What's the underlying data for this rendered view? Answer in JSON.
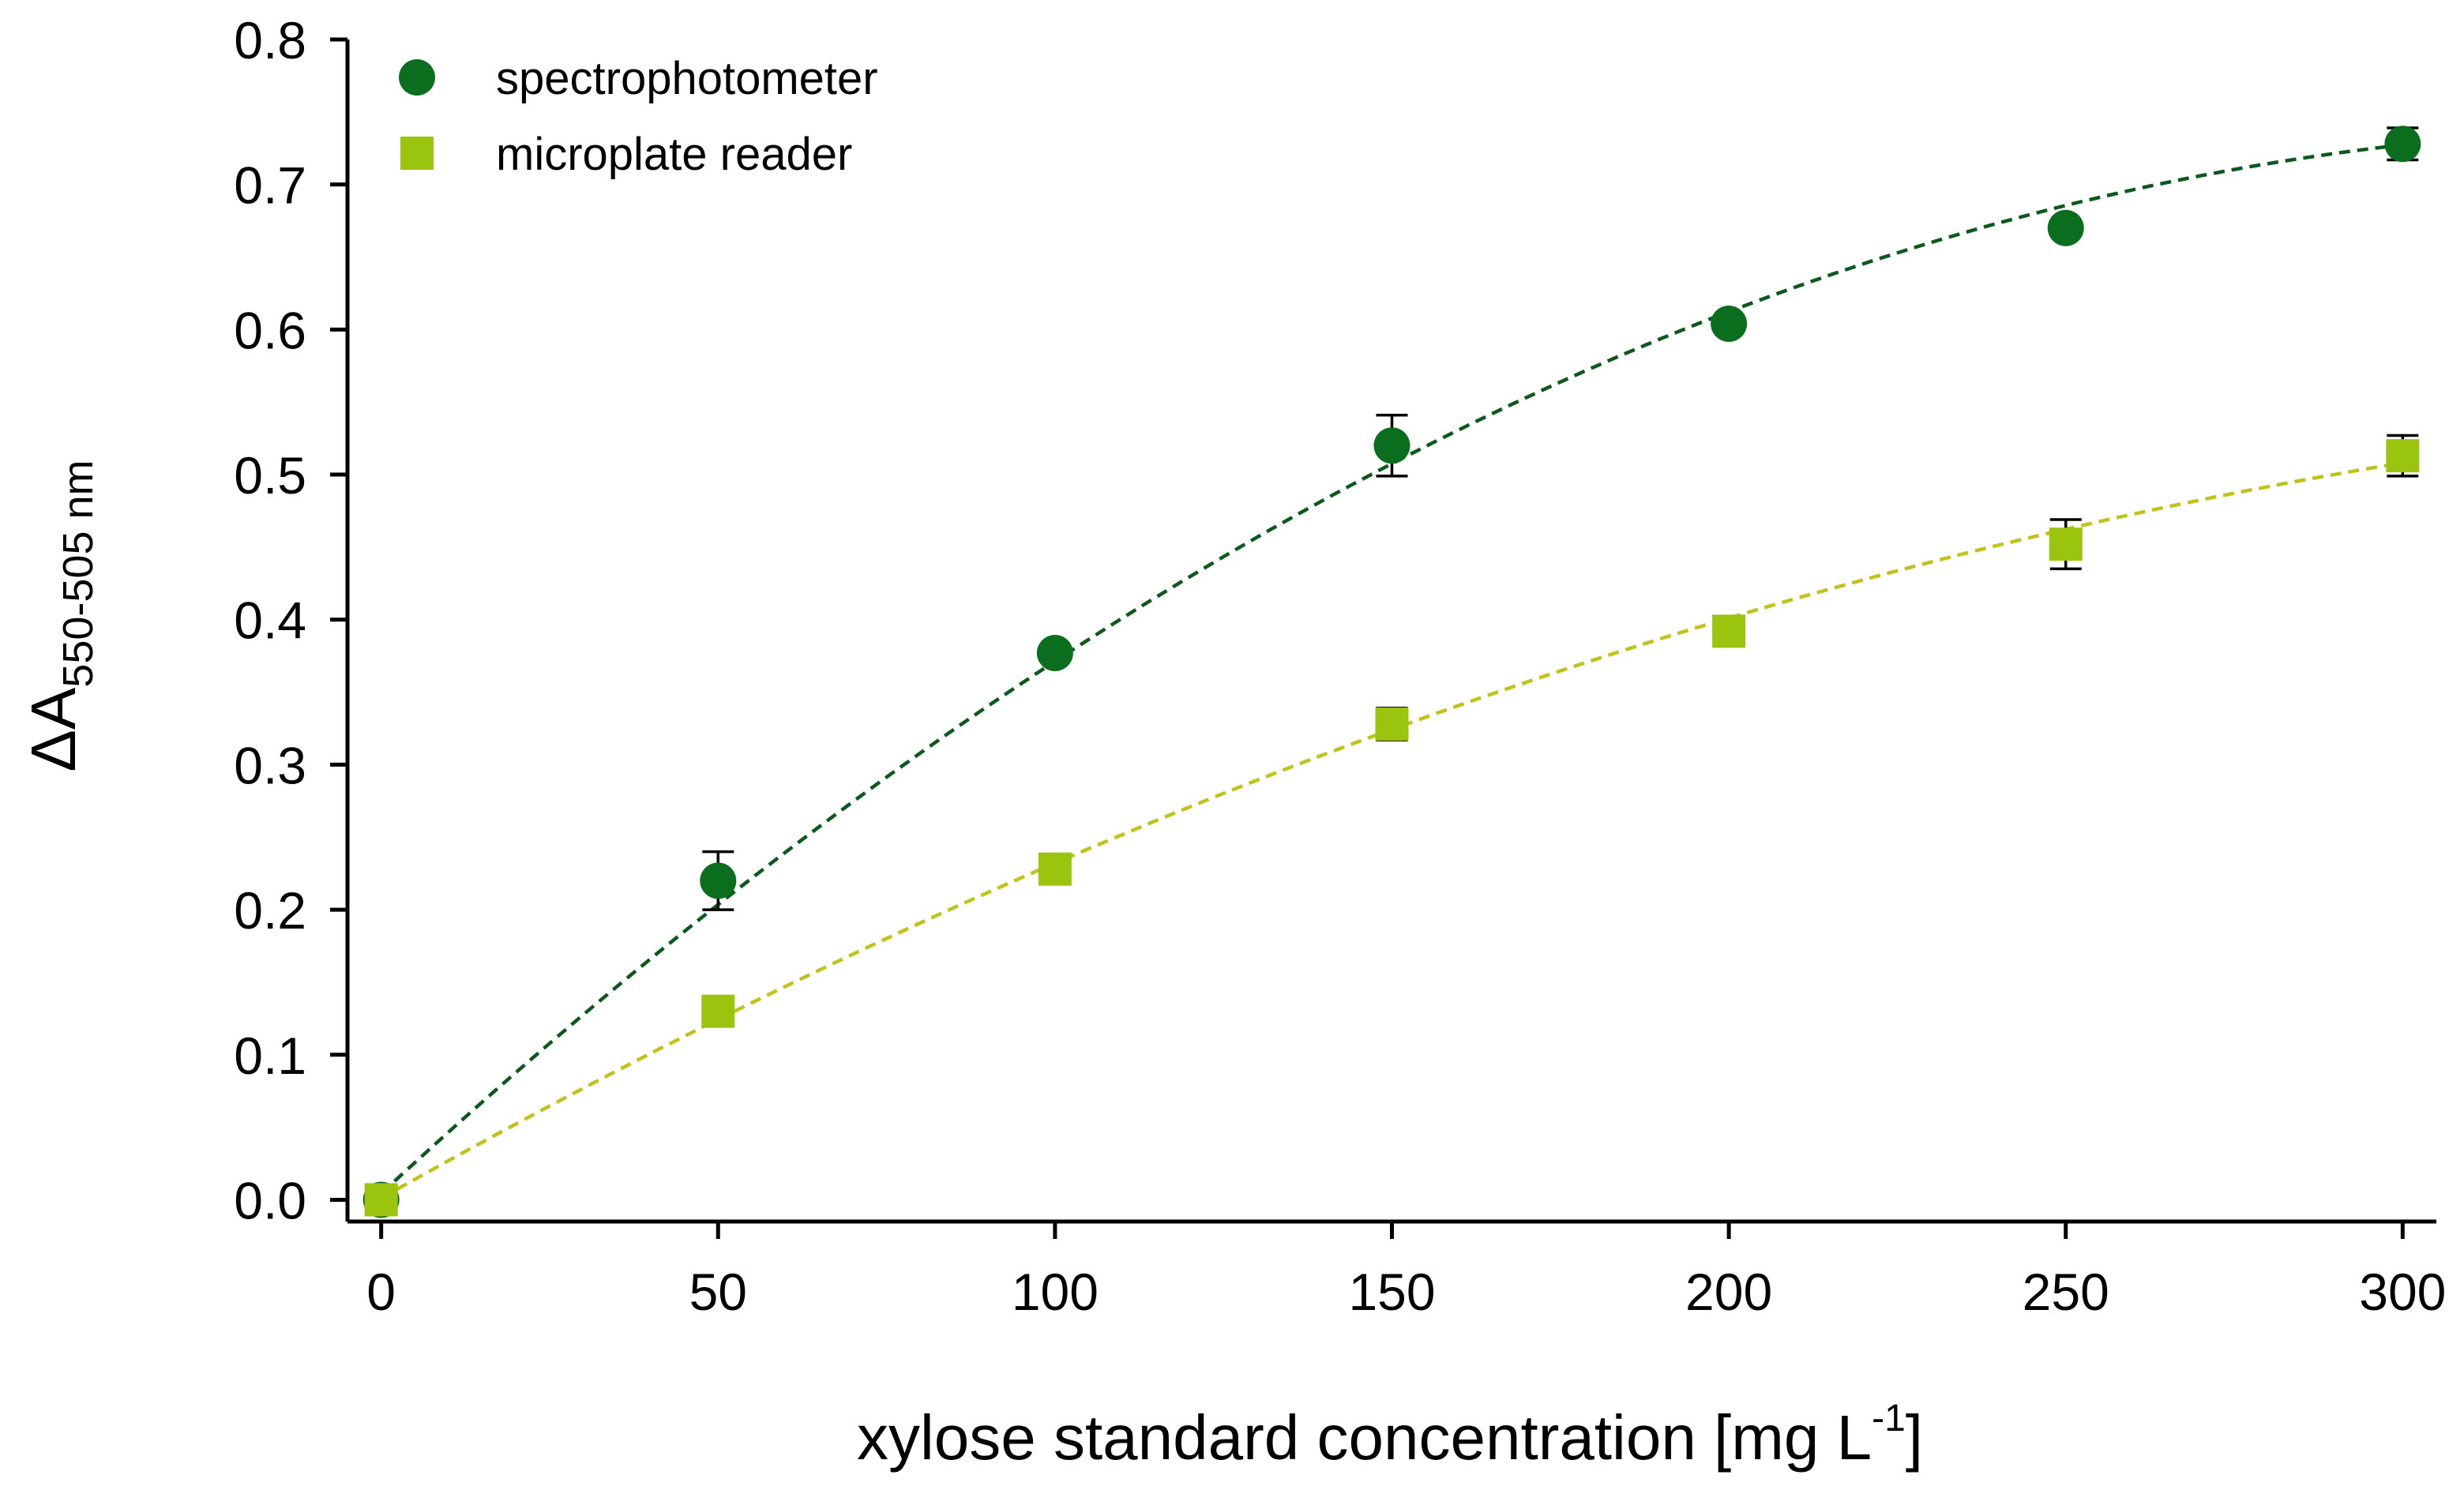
{
  "colors": {
    "spectrophotometer": "#0a6e1e",
    "spectrophotometer_fit": "#0b5a1c",
    "microplate": "#9bc40e",
    "microplate_fit": "#c2c21a",
    "errorbar": "#000000"
  },
  "chart_data": {
    "type": "scatter",
    "title": "",
    "xlabel": {
      "main": "xylose standard concentration [mg L",
      "sup": "-1",
      "close": "]"
    },
    "ylabel": {
      "main": "ΔA",
      "sub": "550-505 nm"
    },
    "xlim": [
      -5,
      305
    ],
    "ylim": [
      -0.015,
      0.8
    ],
    "xticks": [
      0,
      50,
      100,
      150,
      200,
      250,
      300
    ],
    "xtick_labels": [
      "0",
      "50",
      "100",
      "150",
      "200",
      "250",
      "300"
    ],
    "yticks": [
      0.0,
      0.1,
      0.2,
      0.3,
      0.4,
      0.5,
      0.6,
      0.7,
      0.8
    ],
    "ytick_labels": [
      "0.0",
      "0.1",
      "0.2",
      "0.3",
      "0.4",
      "0.5",
      "0.6",
      "0.7",
      "0.8"
    ],
    "legend": {
      "position": "top-left",
      "entries": [
        "spectrophotometer",
        "microplate reader"
      ]
    },
    "series": [
      {
        "name": "spectrophotometer",
        "marker": "circle",
        "color_key": "spectrophotometer",
        "fit_color_key": "spectrophotometer_fit",
        "x": [
          0,
          50,
          100,
          150,
          200,
          250,
          300
        ],
        "y": [
          0.0,
          0.22,
          0.377,
          0.52,
          0.604,
          0.67,
          0.728
        ],
        "err": [
          0.0,
          0.02,
          0.004,
          0.021,
          0.003,
          0.002,
          0.011
        ],
        "fit": {
          "type": "quadratic",
          "a": 0.0043,
          "b": 0.0043,
          "c": -6.3e-06
        }
      },
      {
        "name": "microplate reader",
        "marker": "square",
        "color_key": "microplate",
        "fit_color_key": "microplate_fit",
        "x": [
          0,
          50,
          100,
          150,
          200,
          250,
          300
        ],
        "y": [
          0.0,
          0.13,
          0.228,
          0.328,
          0.392,
          0.452,
          0.513
        ],
        "err": [
          0.0,
          0.007,
          0.004,
          0.011,
          0.007,
          0.017,
          0.014
        ],
        "fit": {
          "type": "quadratic",
          "a": 0.0011,
          "b": 0.00262,
          "c": -3.1e-06
        }
      }
    ]
  }
}
